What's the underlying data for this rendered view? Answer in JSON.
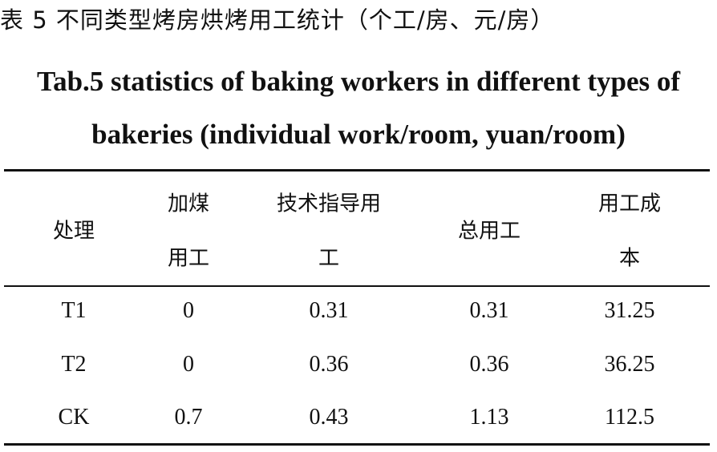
{
  "caption_cn": "表 5 不同类型烤房烘烤用工统计（个工/房、元/房）",
  "caption_en_line1": "Tab.5 statistics of baking workers in different types of",
  "caption_en_line2": "bakeries (individual work/room, yuan/room)",
  "table": {
    "headers": [
      {
        "line1": "处理",
        "line2": ""
      },
      {
        "line1": "加煤",
        "line2": "用工"
      },
      {
        "line1": "技术指导用",
        "line2": "工"
      },
      {
        "line1": "总用工",
        "line2": ""
      },
      {
        "line1": "用工成",
        "line2": "本"
      }
    ],
    "rows": [
      [
        "T1",
        "0",
        "0.31",
        "0.31",
        "31.25"
      ],
      [
        "T2",
        "0",
        "0.36",
        "0.36",
        "36.25"
      ],
      [
        "CK",
        "0.7",
        "0.43",
        "1.13",
        "112.5"
      ]
    ]
  }
}
